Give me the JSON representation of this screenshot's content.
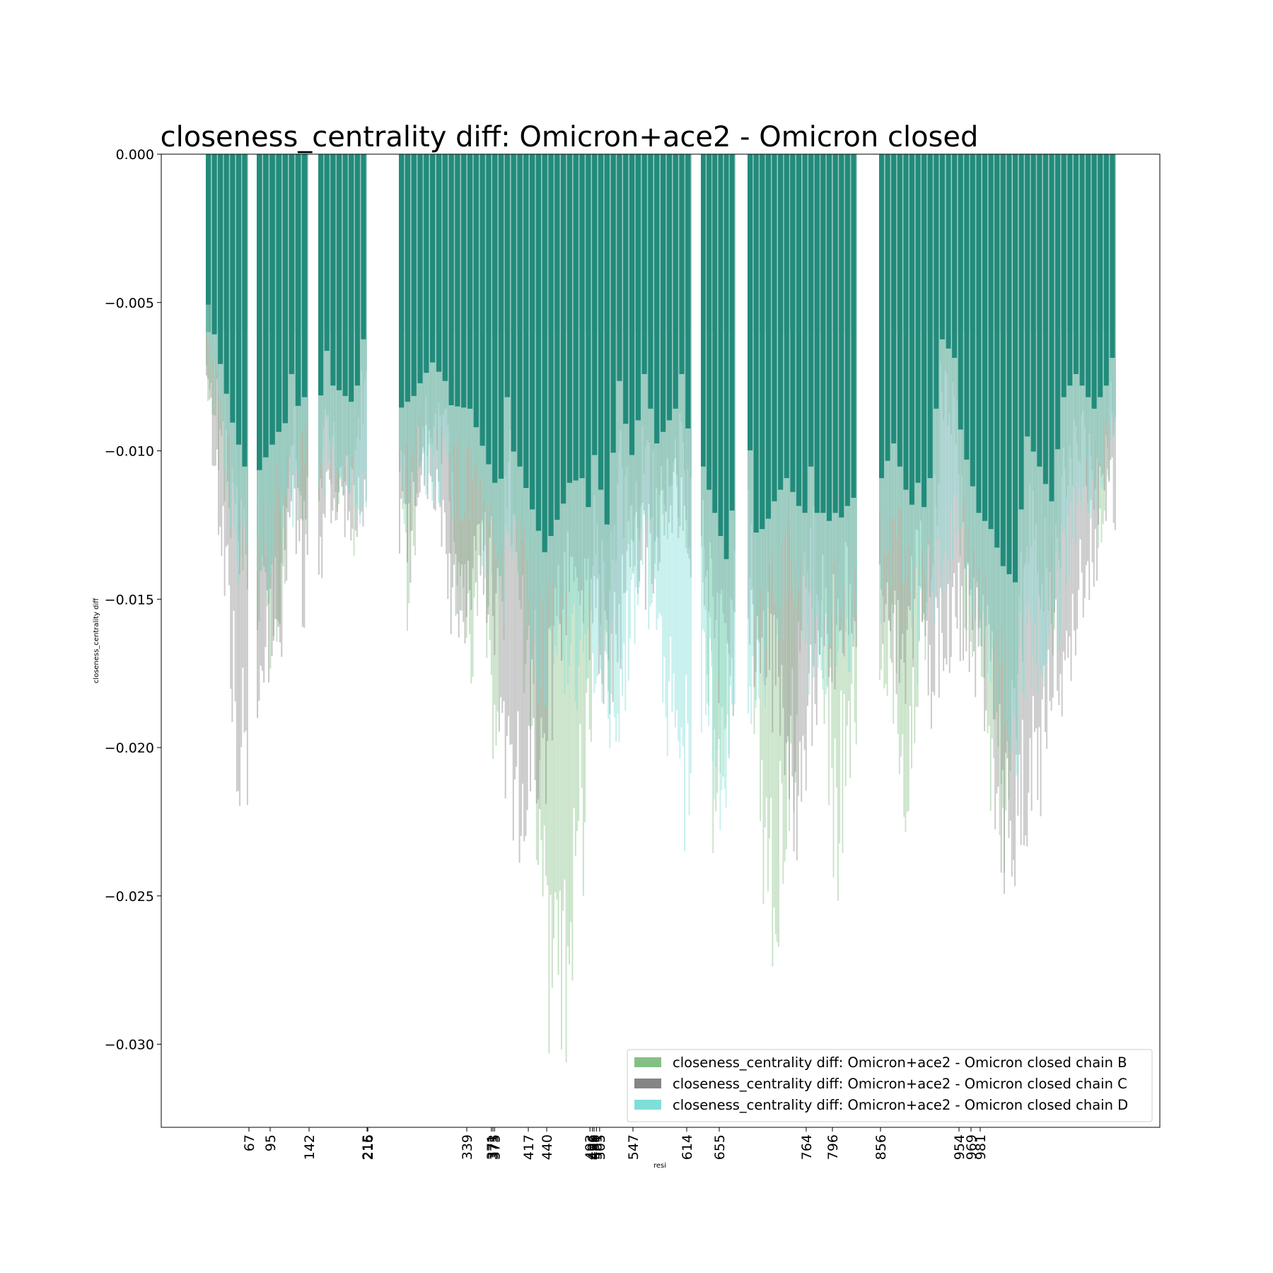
{
  "chart_data": {
    "type": "bar",
    "title": "closeness_centrality diff: Omicron+ace2 - Omicron closed",
    "xlabel": "resi",
    "ylabel": "closeness_centrality diff",
    "ylim": [
      -0.0328,
      0.0
    ],
    "yticks": [
      "0.000",
      "−0.005",
      "−0.010",
      "−0.015",
      "−0.020",
      "−0.025",
      "−0.030"
    ],
    "ytick_values": [
      0.0,
      -0.005,
      -0.01,
      -0.015,
      -0.02,
      -0.025,
      -0.03
    ],
    "xtick_labels": [
      "67",
      "95",
      "142",
      "215",
      "216",
      "339",
      "371",
      "373",
      "375",
      "417",
      "440",
      "493",
      "496",
      "498",
      "501",
      "505",
      "547",
      "614",
      "655",
      "764",
      "796",
      "856",
      "954",
      "969",
      "981"
    ],
    "grid": false,
    "legend_position": "lower-right",
    "bar_fill_color": "#228b7b",
    "series": [
      {
        "name": "closeness_centrality diff: Omicron+ace2 - Omicron closed chain B",
        "color": "#84c084",
        "profile": [
          [
            0,
            -0.0078
          ],
          [
            6,
            -0.0135
          ],
          [
            10,
            -0.016
          ],
          [
            12,
            -0.0095
          ],
          [
            14,
            -0.0125
          ],
          [
            16,
            -0.0085
          ],
          [
            18,
            -0.0115
          ],
          [
            20,
            -0.012
          ],
          [
            22,
            -0.008
          ],
          [
            24,
            -0.0142
          ],
          [
            26,
            -0.0099
          ],
          [
            28,
            -0.009
          ],
          [
            30,
            -0.0098
          ],
          [
            32,
            -0.0142
          ],
          [
            34,
            -0.0158
          ],
          [
            36,
            -0.0135
          ],
          [
            38,
            -0.0198
          ],
          [
            40,
            -0.0105
          ],
          [
            42,
            -0.0152
          ],
          [
            44,
            -0.0172
          ],
          [
            46,
            -0.0255
          ],
          [
            48,
            -0.028
          ],
          [
            50,
            -0.026
          ],
          [
            52,
            -0.022
          ],
          [
            54,
            -0.013
          ],
          [
            56,
            -0.016
          ],
          [
            58,
            -0.0098
          ],
          [
            60,
            -0.0135
          ],
          [
            62,
            -0.0095
          ],
          [
            64,
            -0.0125
          ],
          [
            66,
            -0.0125
          ],
          [
            68,
            -0.0095
          ],
          [
            70,
            -0.0142
          ],
          [
            72,
            -0.021
          ],
          [
            74,
            -0.018
          ],
          [
            76,
            -0.0128
          ],
          [
            78,
            -0.0225
          ],
          [
            80,
            -0.0248
          ],
          [
            82,
            -0.0222
          ],
          [
            84,
            -0.0175
          ],
          [
            86,
            -0.0135
          ],
          [
            88,
            -0.0175
          ],
          [
            90,
            -0.0222
          ],
          [
            92,
            -0.0195
          ],
          [
            94,
            -0.0165
          ],
          [
            96,
            -0.017
          ],
          [
            98,
            -0.0205
          ],
          [
            100,
            -0.0165
          ],
          [
            102,
            -0.014
          ],
          [
            104,
            -0.008
          ],
          [
            106,
            -0.0088
          ],
          [
            108,
            -0.015
          ],
          [
            110,
            -0.0165
          ],
          [
            112,
            -0.0205
          ],
          [
            114,
            -0.0215
          ],
          [
            116,
            -0.0185
          ],
          [
            118,
            -0.0122
          ],
          [
            120,
            -0.0135
          ],
          [
            122,
            -0.015
          ],
          [
            124,
            -0.0105
          ],
          [
            126,
            -0.0095
          ],
          [
            128,
            -0.0105
          ],
          [
            130,
            -0.013
          ],
          [
            132,
            -0.0088
          ],
          [
            134,
            -0.0082
          ],
          [
            136,
            -0.0078
          ],
          [
            138,
            -0.0068
          ]
        ]
      },
      {
        "name": "closeness_centrality diff: Omicron+ace2 - Omicron closed chain C",
        "color": "#858585",
        "profile": [
          [
            0,
            -0.0086
          ],
          [
            2,
            -0.012
          ],
          [
            4,
            -0.0178
          ],
          [
            5,
            -0.0202
          ],
          [
            6,
            -0.0195
          ],
          [
            8,
            -0.016
          ],
          [
            10,
            -0.0152
          ],
          [
            12,
            -0.0108
          ],
          [
            14,
            -0.0142
          ],
          [
            16,
            -0.0112
          ],
          [
            18,
            -0.0118
          ],
          [
            20,
            -0.0128
          ],
          [
            22,
            -0.0112
          ],
          [
            24,
            -0.013
          ],
          [
            26,
            -0.0102
          ],
          [
            28,
            -0.011
          ],
          [
            30,
            -0.0132
          ],
          [
            32,
            -0.0152
          ],
          [
            34,
            -0.0142
          ],
          [
            36,
            -0.0132
          ],
          [
            38,
            -0.0152
          ],
          [
            40,
            -0.0206
          ],
          [
            42,
            -0.0218
          ],
          [
            44,
            -0.019
          ],
          [
            46,
            -0.0205
          ],
          [
            48,
            -0.016
          ],
          [
            50,
            -0.0142
          ],
          [
            52,
            -0.014
          ],
          [
            54,
            -0.0165
          ],
          [
            56,
            -0.0178
          ],
          [
            58,
            -0.0155
          ],
          [
            60,
            -0.013
          ],
          [
            62,
            -0.0135
          ],
          [
            64,
            -0.0125
          ],
          [
            66,
            -0.0115
          ],
          [
            68,
            -0.012
          ],
          [
            70,
            -0.0135
          ],
          [
            72,
            -0.0155
          ],
          [
            74,
            -0.0175
          ],
          [
            76,
            -0.0165
          ],
          [
            78,
            -0.0162
          ],
          [
            80,
            -0.0175
          ],
          [
            82,
            -0.0205
          ],
          [
            84,
            -0.021
          ],
          [
            86,
            -0.0185
          ],
          [
            88,
            -0.0155
          ],
          [
            90,
            -0.0162
          ],
          [
            92,
            -0.0152
          ],
          [
            94,
            -0.0145
          ],
          [
            96,
            -0.017
          ],
          [
            98,
            -0.0165
          ],
          [
            100,
            -0.0142
          ],
          [
            102,
            -0.0175
          ],
          [
            104,
            -0.0162
          ],
          [
            106,
            -0.0145
          ],
          [
            108,
            -0.0155
          ],
          [
            110,
            -0.0168
          ],
          [
            112,
            -0.0175
          ],
          [
            114,
            -0.0225
          ],
          [
            116,
            -0.0232
          ],
          [
            118,
            -0.0205
          ],
          [
            120,
            -0.02
          ],
          [
            122,
            -0.0168
          ],
          [
            124,
            -0.017
          ],
          [
            126,
            -0.0155
          ],
          [
            128,
            -0.0135
          ],
          [
            130,
            -0.0122
          ],
          [
            132,
            -0.0112
          ],
          [
            134,
            -0.0095
          ],
          [
            136,
            -0.0085
          ],
          [
            138,
            -0.0075
          ]
        ]
      },
      {
        "name": "closeness_centrality diff: Omicron+ace2 - Omicron closed chain D",
        "color": "#7fded8",
        "profile": [
          [
            0,
            -0.0065
          ],
          [
            6,
            -0.0142
          ],
          [
            10,
            -0.012
          ],
          [
            14,
            -0.0105
          ],
          [
            18,
            -0.0102
          ],
          [
            22,
            -0.0112
          ],
          [
            26,
            -0.0102
          ],
          [
            30,
            -0.0108
          ],
          [
            34,
            -0.011
          ],
          [
            38,
            -0.0142
          ],
          [
            42,
            -0.0135
          ],
          [
            46,
            -0.0172
          ],
          [
            48,
            -0.0158
          ],
          [
            50,
            -0.017
          ],
          [
            52,
            -0.0165
          ],
          [
            54,
            -0.016
          ],
          [
            56,
            -0.0178
          ],
          [
            58,
            -0.0182
          ],
          [
            60,
            -0.015
          ],
          [
            62,
            -0.013
          ],
          [
            64,
            -0.0162
          ],
          [
            66,
            -0.0185
          ],
          [
            68,
            -0.0215
          ],
          [
            70,
            -0.0182
          ],
          [
            72,
            -0.0195
          ],
          [
            74,
            -0.0208
          ],
          [
            76,
            -0.0178
          ],
          [
            78,
            -0.0165
          ],
          [
            80,
            -0.015
          ],
          [
            82,
            -0.014
          ],
          [
            84,
            -0.0152
          ],
          [
            86,
            -0.0168
          ],
          [
            88,
            -0.0175
          ],
          [
            90,
            -0.0155
          ],
          [
            92,
            -0.0162
          ],
          [
            94,
            -0.014
          ],
          [
            96,
            -0.0125
          ],
          [
            98,
            -0.0145
          ],
          [
            100,
            -0.0158
          ],
          [
            102,
            -0.015
          ],
          [
            104,
            -0.0142
          ],
          [
            106,
            -0.0125
          ],
          [
            108,
            -0.0132
          ],
          [
            110,
            -0.0155
          ],
          [
            112,
            -0.0162
          ],
          [
            114,
            -0.0178
          ],
          [
            116,
            -0.0185
          ],
          [
            118,
            -0.0165
          ],
          [
            120,
            -0.017
          ],
          [
            122,
            -0.015
          ],
          [
            124,
            -0.0145
          ],
          [
            126,
            -0.0125
          ],
          [
            128,
            -0.0115
          ],
          [
            130,
            -0.0105
          ],
          [
            132,
            -0.0095
          ],
          [
            134,
            -0.0108
          ],
          [
            136,
            -0.0122
          ],
          [
            138,
            -0.0092
          ]
        ]
      }
    ]
  }
}
